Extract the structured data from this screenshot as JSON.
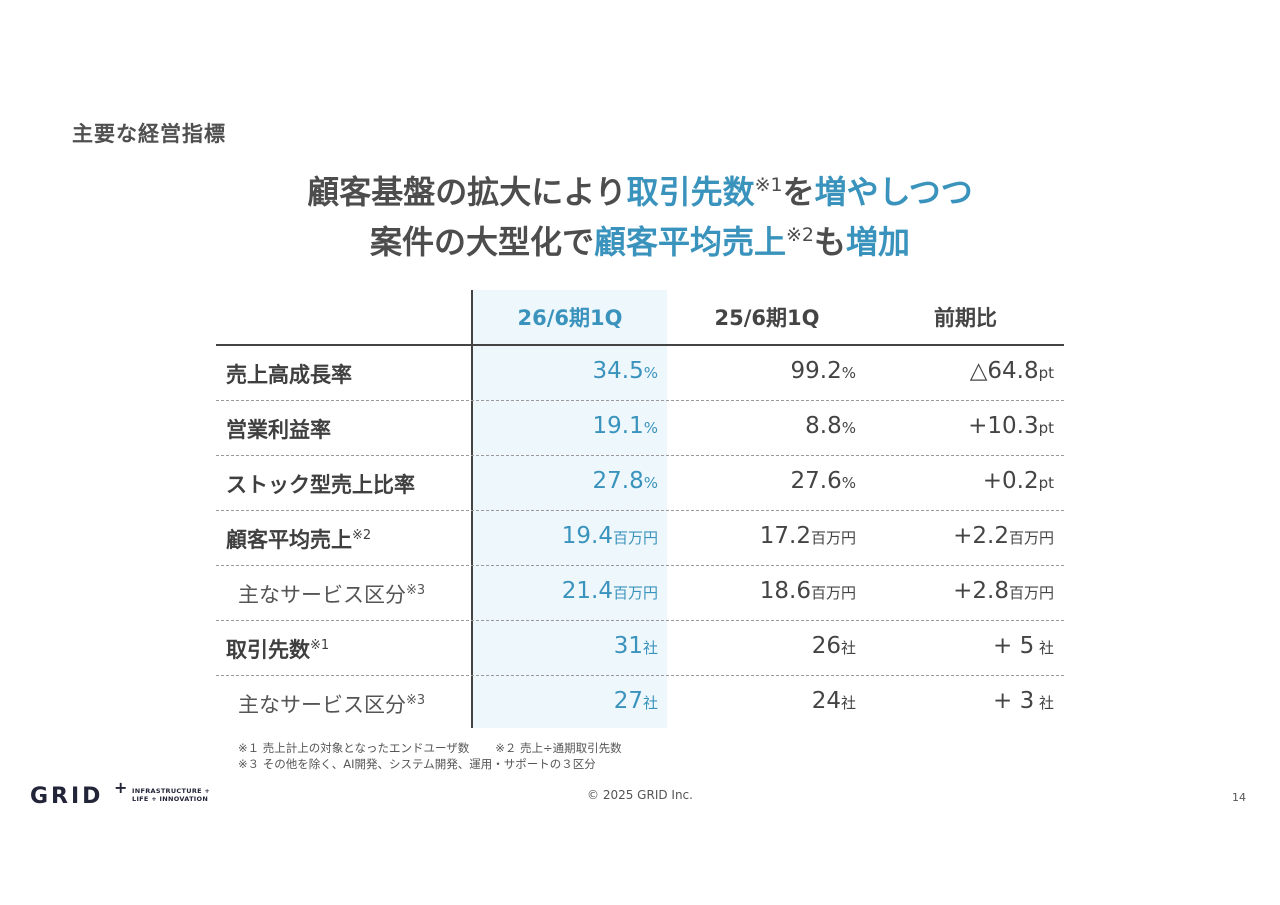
{
  "section_label": "主要な経営指標",
  "headline": {
    "line1": {
      "part1": "顧客基盤の拡大により",
      "hl1": "取引先数",
      "sup1": "※1",
      "part2": "を",
      "hl2": "増やしつつ"
    },
    "line2": {
      "part1": "案件の大型化で",
      "hl1": "顧客平均売上",
      "sup1": "※2",
      "part2": "も",
      "hl2": "増加"
    }
  },
  "table": {
    "headers": [
      "26/6期1Q",
      "25/6期1Q",
      "前期比"
    ],
    "rows": [
      {
        "label": "売上高成長率",
        "note": "",
        "cur": "34.5",
        "cur_unit": "%",
        "prev": "99.2",
        "prev_unit": "%",
        "diff": "△64.8",
        "diff_unit": "pt"
      },
      {
        "label": "営業利益率",
        "note": "",
        "cur": "19.1",
        "cur_unit": "%",
        "prev": "8.8",
        "prev_unit": "%",
        "diff": "+10.3",
        "diff_unit": "pt"
      },
      {
        "label": "ストック型売上比率",
        "note": "",
        "cur": "27.8",
        "cur_unit": "%",
        "prev": "27.6",
        "prev_unit": "%",
        "diff": "+0.2",
        "diff_unit": "pt"
      },
      {
        "label": "顧客平均売上",
        "note": "※2",
        "cur": "19.4",
        "cur_unit": "百万円",
        "prev": "17.2",
        "prev_unit": "百万円",
        "diff": "+2.2",
        "diff_unit": "百万円"
      },
      {
        "label": "主なサービス区分",
        "note": "※3",
        "cur": "21.4",
        "cur_unit": "百万円",
        "prev": "18.6",
        "prev_unit": "百万円",
        "diff": "+2.8",
        "diff_unit": "百万円"
      },
      {
        "label": "取引先数",
        "note": "※1",
        "cur": "31",
        "cur_unit": "社",
        "prev": "26",
        "prev_unit": "社",
        "diff": "+ 5",
        "diff_unit": " 社"
      },
      {
        "label": "主なサービス区分",
        "note": "※3",
        "cur": "27",
        "cur_unit": "社",
        "prev": "24",
        "prev_unit": "社",
        "diff": "+ 3",
        "diff_unit": " 社"
      }
    ]
  },
  "footnotes": {
    "n1": "※１ 売上計上の対象となったエンドユーザ数",
    "n2": "※２ 売上÷通期取引先数",
    "n3": "※３ その他を除く、AI開発、システム開発、運用・サポートの３区分"
  },
  "logo": {
    "word": "GRID",
    "plus": "+",
    "tag_line1": "INFRASTRUCTURE +",
    "tag_line2": "LIFE + INNOVATION"
  },
  "copyright": "© 2025 GRID Inc.",
  "page_number": "14",
  "colors": {
    "accent": "#3a93bc",
    "highlight_bg": "#eef7fc",
    "text": "#444444"
  }
}
